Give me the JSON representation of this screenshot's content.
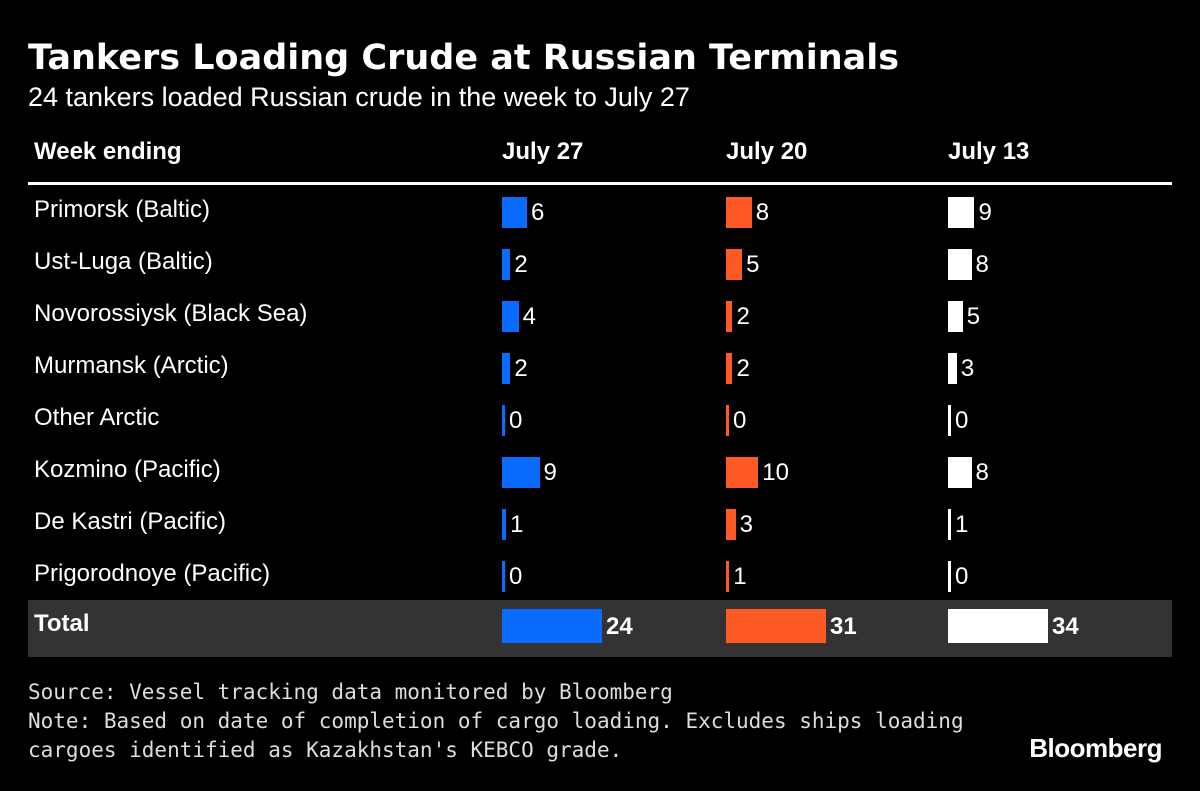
{
  "header": {
    "title": "Tankers Loading Crude at Russian Terminals",
    "subtitle": "24 tankers loaded Russian crude in the week to July 27"
  },
  "table": {
    "columns": [
      "Week ending",
      "July 27",
      "July 20",
      "July 13"
    ],
    "colors": [
      "#0a6bff",
      "#ff5a26",
      "#ffffff"
    ],
    "rows": [
      {
        "label": "Primorsk (Baltic)",
        "values": [
          6,
          8,
          9
        ]
      },
      {
        "label": "Ust-Luga (Baltic)",
        "values": [
          2,
          5,
          8
        ]
      },
      {
        "label": "Novorossiysk (Black Sea)",
        "values": [
          4,
          2,
          5
        ]
      },
      {
        "label": "Murmansk (Arctic)",
        "values": [
          2,
          2,
          3
        ]
      },
      {
        "label": "Other Arctic",
        "values": [
          0,
          0,
          0
        ]
      },
      {
        "label": "Kozmino (Pacific)",
        "values": [
          9,
          10,
          8
        ]
      },
      {
        "label": "De Kastri (Pacific)",
        "values": [
          1,
          3,
          1
        ]
      },
      {
        "label": "Prigorodnoye (Pacific)",
        "values": [
          0,
          1,
          0
        ]
      }
    ],
    "total": {
      "label": "Total",
      "values": [
        24,
        31,
        34
      ]
    }
  },
  "footer": {
    "source": "Source: Vessel tracking data monitored by Bloomberg",
    "note": "Note: Based on date of completion of cargo loading. Excludes ships loading cargoes identified as Kazakhstan's KEBCO grade.",
    "brand": "Bloomberg"
  }
}
